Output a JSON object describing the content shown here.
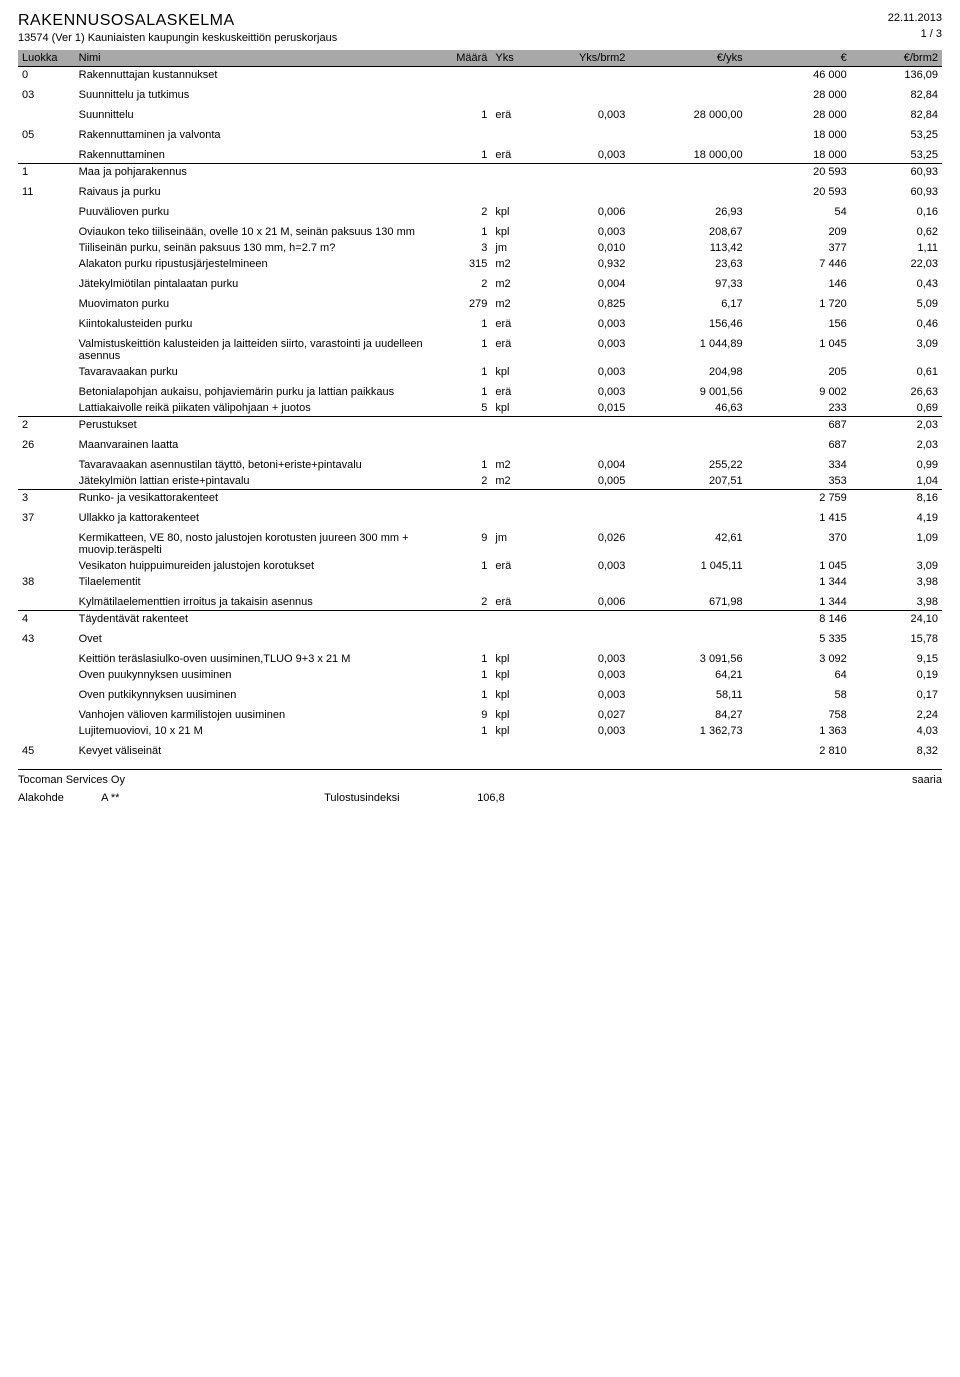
{
  "header": {
    "title": "RAKENNUSOSALASKELMA",
    "subtitle": "13574 (Ver 1) Kauniaisten kaupungin keskuskeittiön peruskorjaus",
    "date": "22.11.2013",
    "page": "1 /        3"
  },
  "columns": {
    "c0": "Luokka",
    "c1": "Nimi",
    "c2": "Määrä",
    "c3": "Yks",
    "c4": "Yks/brm2",
    "c5": "€/yks",
    "c6": "€",
    "c7": "€/brm2"
  },
  "rows": [
    {
      "code": "0",
      "nimi": "Rakennuttajan kustannukset",
      "maara": "",
      "yks": "",
      "yksbrm": "",
      "eyks": "",
      "eur": "46 000",
      "ebrm": "136,09",
      "hline": true
    },
    {
      "code": "03",
      "nimi": "Suunnittelu ja tutkimus",
      "maara": "",
      "yks": "",
      "yksbrm": "",
      "eyks": "",
      "eur": "28 000",
      "ebrm": "82,84",
      "spacer": true
    },
    {
      "code": "",
      "nimi": "Suunnittelu",
      "maara": "1",
      "yks": "erä",
      "yksbrm": "0,003",
      "eyks": "28 000,00",
      "eur": "28 000",
      "ebrm": "82,84",
      "spacer": true
    },
    {
      "code": "05",
      "nimi": "Rakennuttaminen ja valvonta",
      "maara": "",
      "yks": "",
      "yksbrm": "",
      "eyks": "",
      "eur": "18 000",
      "ebrm": "53,25",
      "spacer": true
    },
    {
      "code": "",
      "nimi": "Rakennuttaminen",
      "maara": "1",
      "yks": "erä",
      "yksbrm": "0,003",
      "eyks": "18 000,00",
      "eur": "18 000",
      "ebrm": "53,25",
      "spacer": true
    },
    {
      "code": "1",
      "nimi": "Maa ja pohjarakennus",
      "maara": "",
      "yks": "",
      "yksbrm": "",
      "eyks": "",
      "eur": "20 593",
      "ebrm": "60,93",
      "hline": true
    },
    {
      "code": "11",
      "nimi": "Raivaus ja purku",
      "maara": "",
      "yks": "",
      "yksbrm": "",
      "eyks": "",
      "eur": "20 593",
      "ebrm": "60,93",
      "spacer": true
    },
    {
      "code": "",
      "nimi": "Puuvälioven purku",
      "maara": "2",
      "yks": "kpl",
      "yksbrm": "0,006",
      "eyks": "26,93",
      "eur": "54",
      "ebrm": "0,16",
      "spacer": true
    },
    {
      "code": "",
      "nimi": "Oviaukon teko tiiliseinään, ovelle 10 x 21 M, seinän paksuus 130 mm",
      "maara": "1",
      "yks": "kpl",
      "yksbrm": "0,003",
      "eyks": "208,67",
      "eur": "209",
      "ebrm": "0,62",
      "spacer": true
    },
    {
      "code": "",
      "nimi": "Tiiliseinän purku, seinän paksuus 130 mm, h=2.7 m?",
      "maara": "3",
      "yks": "jm",
      "yksbrm": "0,010",
      "eyks": "113,42",
      "eur": "377",
      "ebrm": "1,11"
    },
    {
      "code": "",
      "nimi": "Alakaton purku ripustusjärjestelmineen",
      "maara": "315",
      "yks": "m2",
      "yksbrm": "0,932",
      "eyks": "23,63",
      "eur": "7 446",
      "ebrm": "22,03"
    },
    {
      "code": "",
      "nimi": "Jätekylmiötilan pintalaatan purku",
      "maara": "2",
      "yks": "m2",
      "yksbrm": "0,004",
      "eyks": "97,33",
      "eur": "146",
      "ebrm": "0,43",
      "spacer": true
    },
    {
      "code": "",
      "nimi": "Muovimaton purku",
      "maara": "279",
      "yks": "m2",
      "yksbrm": "0,825",
      "eyks": "6,17",
      "eur": "1 720",
      "ebrm": "5,09",
      "spacer": true
    },
    {
      "code": "",
      "nimi": "Kiintokalusteiden purku",
      "maara": "1",
      "yks": "erä",
      "yksbrm": "0,003",
      "eyks": "156,46",
      "eur": "156",
      "ebrm": "0,46",
      "spacer": true
    },
    {
      "code": "",
      "nimi": "Valmistuskeittiön kalusteiden ja laitteiden siirto, varastointi ja uudelleen asennus",
      "maara": "1",
      "yks": "erä",
      "yksbrm": "0,003",
      "eyks": "1 044,89",
      "eur": "1 045",
      "ebrm": "3,09",
      "spacer": true
    },
    {
      "code": "",
      "nimi": "Tavaravaakan purku",
      "maara": "1",
      "yks": "kpl",
      "yksbrm": "0,003",
      "eyks": "204,98",
      "eur": "205",
      "ebrm": "0,61"
    },
    {
      "code": "",
      "nimi": "Betonialapohjan aukaisu, pohjaviemärin purku ja lattian paikkaus",
      "maara": "1",
      "yks": "erä",
      "yksbrm": "0,003",
      "eyks": "9 001,56",
      "eur": "9 002",
      "ebrm": "26,63",
      "spacer": true
    },
    {
      "code": "",
      "nimi": "Lattiakaivolle reikä piikaten välipohjaan + juotos",
      "maara": "5",
      "yks": "kpl",
      "yksbrm": "0,015",
      "eyks": "46,63",
      "eur": "233",
      "ebrm": "0,69"
    },
    {
      "code": "2",
      "nimi": "Perustukset",
      "maara": "",
      "yks": "",
      "yksbrm": "",
      "eyks": "",
      "eur": "687",
      "ebrm": "2,03",
      "hline": true
    },
    {
      "code": "26",
      "nimi": "Maanvarainen laatta",
      "maara": "",
      "yks": "",
      "yksbrm": "",
      "eyks": "",
      "eur": "687",
      "ebrm": "2,03",
      "spacer": true
    },
    {
      "code": "",
      "nimi": "Tavaravaakan asennustilan täyttö, betoni+eriste+pintavalu",
      "maara": "1",
      "yks": "m2",
      "yksbrm": "0,004",
      "eyks": "255,22",
      "eur": "334",
      "ebrm": "0,99",
      "spacer": true
    },
    {
      "code": "",
      "nimi": "Jätekylmiön lattian eriste+pintavalu",
      "maara": "2",
      "yks": "m2",
      "yksbrm": "0,005",
      "eyks": "207,51",
      "eur": "353",
      "ebrm": "1,04"
    },
    {
      "code": "3",
      "nimi": "Runko- ja vesikattorakenteet",
      "maara": "",
      "yks": "",
      "yksbrm": "",
      "eyks": "",
      "eur": "2 759",
      "ebrm": "8,16",
      "hline": true
    },
    {
      "code": "37",
      "nimi": "Ullakko ja kattorakenteet",
      "maara": "",
      "yks": "",
      "yksbrm": "",
      "eyks": "",
      "eur": "1 415",
      "ebrm": "4,19",
      "spacer": true
    },
    {
      "code": "",
      "nimi": "Kermikatteen, VE 80, nosto jalustojen korotusten juureen 300 mm + muovip.teräspelti",
      "maara": "9",
      "yks": "jm",
      "yksbrm": "0,026",
      "eyks": "42,61",
      "eur": "370",
      "ebrm": "1,09",
      "spacer": true
    },
    {
      "code": "",
      "nimi": "Vesikaton huippuimureiden jalustojen korotukset",
      "maara": "1",
      "yks": "erä",
      "yksbrm": "0,003",
      "eyks": "1 045,11",
      "eur": "1 045",
      "ebrm": "3,09"
    },
    {
      "code": "38",
      "nimi": "Tilaelementit",
      "maara": "",
      "yks": "",
      "yksbrm": "",
      "eyks": "",
      "eur": "1 344",
      "ebrm": "3,98"
    },
    {
      "code": "",
      "nimi": "Kylmätilaelementtien irroitus ja takaisin asennus",
      "maara": "2",
      "yks": "erä",
      "yksbrm": "0,006",
      "eyks": "671,98",
      "eur": "1 344",
      "ebrm": "3,98",
      "spacer": true
    },
    {
      "code": "4",
      "nimi": "Täydentävät rakenteet",
      "maara": "",
      "yks": "",
      "yksbrm": "",
      "eyks": "",
      "eur": "8 146",
      "ebrm": "24,10",
      "hline": true
    },
    {
      "code": "43",
      "nimi": "Ovet",
      "maara": "",
      "yks": "",
      "yksbrm": "",
      "eyks": "",
      "eur": "5 335",
      "ebrm": "15,78",
      "spacer": true
    },
    {
      "code": "",
      "nimi": "Keittiön teräslasiulko-oven uusiminen,TLUO 9+3 x 21 M",
      "maara": "1",
      "yks": "kpl",
      "yksbrm": "0,003",
      "eyks": "3 091,56",
      "eur": "3 092",
      "ebrm": "9,15",
      "spacer": true
    },
    {
      "code": "",
      "nimi": "Oven puukynnyksen uusiminen",
      "maara": "1",
      "yks": "kpl",
      "yksbrm": "0,003",
      "eyks": "64,21",
      "eur": "64",
      "ebrm": "0,19"
    },
    {
      "code": "",
      "nimi": "Oven putkikynnyksen uusiminen",
      "maara": "1",
      "yks": "kpl",
      "yksbrm": "0,003",
      "eyks": "58,11",
      "eur": "58",
      "ebrm": "0,17",
      "spacer": true
    },
    {
      "code": "",
      "nimi": "Vanhojen välioven karmilistojen uusiminen",
      "maara": "9",
      "yks": "kpl",
      "yksbrm": "0,027",
      "eyks": "84,27",
      "eur": "758",
      "ebrm": "2,24",
      "spacer": true
    },
    {
      "code": "",
      "nimi": "Lujitemuoviovi, 10 x 21 M",
      "maara": "1",
      "yks": "kpl",
      "yksbrm": "0,003",
      "eyks": "1 362,73",
      "eur": "1 363",
      "ebrm": "4,03"
    },
    {
      "code": "45",
      "nimi": "Kevyet väliseinät",
      "maara": "",
      "yks": "",
      "yksbrm": "",
      "eyks": "",
      "eur": "2 810",
      "ebrm": "8,32",
      "spacer": true
    }
  ],
  "footer": {
    "left": "Tocoman Services Oy",
    "right": "saaria",
    "alakohde_label": "Alakohde",
    "alakohde_val": "A **",
    "tulostus_label": "Tulostusindeksi",
    "tulostus_val": "106,8"
  }
}
